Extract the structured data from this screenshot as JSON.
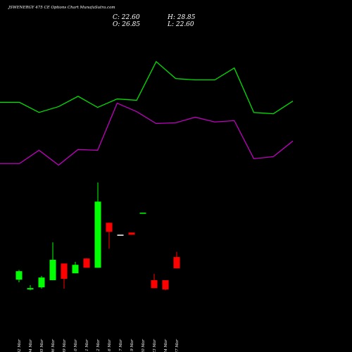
{
  "chart_data": [
    {
      "type": "candlestick",
      "title": "JSWENERGY 475 CE Options Chart MunafaSutra.com",
      "annotations": [
        "C: 22.60",
        "H: 28.85",
        "O: 26.85",
        "L: 22.60"
      ],
      "categories": [
        "02 Mar",
        "04 Mar",
        "05 Mar",
        "06 Mar",
        "09 Mar",
        "10 Mar",
        "11 Mar",
        "12 Mar",
        "16 Mar",
        "17 Mar",
        "19 Mar",
        "20 Mar",
        "23 Mar",
        "24 Mar",
        "27 Mar"
      ],
      "open": [
        18.3,
        14.6,
        15.4,
        18.1,
        24.4,
        20.7,
        26.3,
        22.8,
        39.8,
        35.3,
        36.1,
        43.6,
        18.1,
        18.1,
        26.85
      ],
      "high": [
        22.0,
        16.2,
        19.7,
        32.4,
        24.4,
        25.0,
        26.3,
        55.0,
        39.8,
        35.3,
        36.1,
        43.6,
        20.5,
        18.1,
        28.85
      ],
      "low": [
        17.3,
        14.3,
        14.9,
        18.1,
        14.9,
        20.7,
        22.8,
        22.8,
        30.0,
        35.3,
        35.3,
        43.6,
        15.1,
        14.3,
        22.6
      ],
      "close": [
        21.5,
        15.1,
        19.1,
        25.8,
        18.6,
        23.9,
        22.8,
        47.8,
        36.4,
        35.3,
        35.3,
        43.6,
        15.1,
        14.6,
        22.6
      ],
      "colors": [
        "#00ff00",
        "#00ff00",
        "#00ff00",
        "#00ff00",
        "#ff0000",
        "#00ff00",
        "#ff0000",
        "#00ff00",
        "#ff0000",
        "#ffffff",
        "#ff0000",
        "#00ff00",
        "#ff0000",
        "#ff0000",
        "#ff0000"
      ],
      "ylim": [
        0,
        124
      ]
    },
    {
      "type": "line",
      "categories": [
        null,
        null,
        null,
        null,
        null,
        null,
        null,
        null,
        null,
        null,
        null,
        null,
        null,
        null,
        null,
        null
      ],
      "series": [
        {
          "color": "#00e000",
          "values": [
            85.3,
            85.3,
            81.5,
            83.7,
            87.6,
            83.4,
            86.6,
            86.1,
            100.7,
            94.3,
            93.8,
            93.8,
            98.3,
            81.5,
            81.0,
            85.8
          ]
        },
        {
          "color": "#c000c0",
          "values": [
            62.2,
            62.2,
            67.2,
            61.6,
            67.5,
            67.2,
            85.0,
            81.8,
            77.3,
            77.6,
            79.7,
            77.9,
            78.4,
            64.0,
            64.8,
            70.7
          ]
        }
      ],
      "ylim": [
        0,
        124
      ]
    }
  ]
}
